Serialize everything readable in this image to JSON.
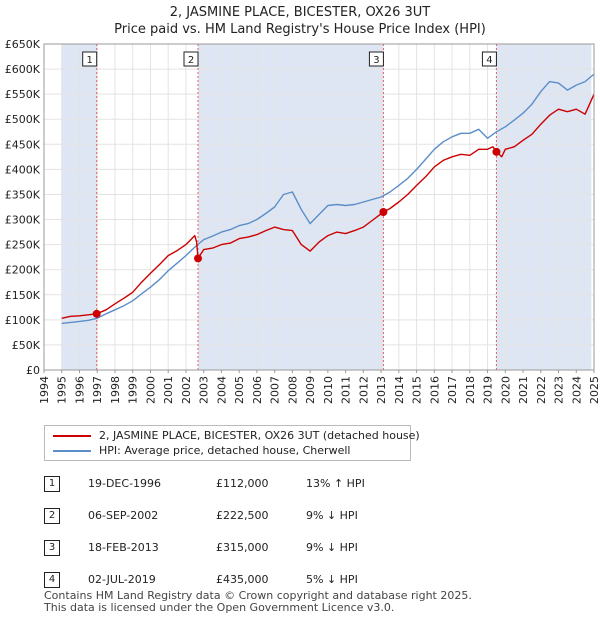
{
  "title": "2, JASMINE PLACE, BICESTER, OX26 3UT",
  "subtitle": "Price paid vs. HM Land Registry's House Price Index (HPI)",
  "colors": {
    "property": "#cc0000",
    "hpi": "#5b8ec9",
    "shade": "#dfe6f3",
    "marker_line": "#e06060"
  },
  "chart_data": {
    "type": "line",
    "xlim": [
      1994,
      2025
    ],
    "ylim": [
      0,
      650000
    ],
    "yticks": [
      0,
      50000,
      100000,
      150000,
      200000,
      250000,
      300000,
      350000,
      400000,
      450000,
      500000,
      550000,
      600000,
      650000
    ],
    "ytick_labels": [
      "£0",
      "£50K",
      "£100K",
      "£150K",
      "£200K",
      "£250K",
      "£300K",
      "£350K",
      "£400K",
      "£450K",
      "£500K",
      "£550K",
      "£600K",
      "£650K"
    ],
    "xticks": [
      1994,
      1995,
      1996,
      1997,
      1998,
      1999,
      2000,
      2001,
      2002,
      2003,
      2004,
      2005,
      2006,
      2007,
      2008,
      2009,
      2010,
      2011,
      2012,
      2013,
      2014,
      2015,
      2016,
      2017,
      2018,
      2019,
      2020,
      2021,
      2022,
      2023,
      2024,
      2025
    ],
    "shaded_ranges": [
      [
        1995.0,
        1996.97
      ],
      [
        2002.68,
        2013.13
      ],
      [
        2019.5,
        2024.85
      ]
    ],
    "series": [
      {
        "name": "2, JASMINE PLACE, BICESTER, OX26 3UT (detached house)",
        "x": [
          1995.0,
          1995.5,
          1996.0,
          1996.5,
          1996.97,
          1997.5,
          1998.0,
          1998.5,
          1999.0,
          1999.5,
          2000.0,
          2000.5,
          2001.0,
          2001.5,
          2002.0,
          2002.5,
          2002.6,
          2002.68,
          2003.0,
          2003.5,
          2004.0,
          2004.5,
          2005.0,
          2005.5,
          2006.0,
          2006.5,
          2007.0,
          2007.5,
          2008.0,
          2008.5,
          2009.0,
          2009.5,
          2010.0,
          2010.5,
          2011.0,
          2011.5,
          2012.0,
          2012.5,
          2013.13,
          2013.5,
          2014.0,
          2014.5,
          2015.0,
          2015.5,
          2016.0,
          2016.5,
          2017.0,
          2017.5,
          2018.0,
          2018.5,
          2019.0,
          2019.3,
          2019.5,
          2019.8,
          2020.0,
          2020.5,
          2021.0,
          2021.5,
          2022.0,
          2022.5,
          2023.0,
          2023.5,
          2024.0,
          2024.5,
          2025.0
        ],
        "values": [
          103000,
          107000,
          108000,
          110000,
          112000,
          120000,
          132000,
          143000,
          155000,
          175000,
          193000,
          210000,
          228000,
          238000,
          250000,
          268000,
          255000,
          222500,
          240000,
          243000,
          250000,
          253000,
          262000,
          265000,
          270000,
          278000,
          285000,
          280000,
          278000,
          250000,
          237000,
          255000,
          268000,
          275000,
          272000,
          278000,
          285000,
          298000,
          315000,
          322000,
          335000,
          350000,
          368000,
          385000,
          405000,
          418000,
          425000,
          430000,
          428000,
          440000,
          440000,
          445000,
          435000,
          425000,
          440000,
          445000,
          458000,
          470000,
          490000,
          508000,
          520000,
          515000,
          520000,
          510000,
          550000
        ]
      },
      {
        "name": "HPI: Average price, detached house, Cherwell",
        "x": [
          1995.0,
          1995.5,
          1996.0,
          1996.5,
          1997.0,
          1997.5,
          1998.0,
          1998.5,
          1999.0,
          1999.5,
          2000.0,
          2000.5,
          2001.0,
          2001.5,
          2002.0,
          2002.5,
          2003.0,
          2003.5,
          2004.0,
          2004.5,
          2005.0,
          2005.5,
          2006.0,
          2006.5,
          2007.0,
          2007.5,
          2008.0,
          2008.5,
          2009.0,
          2009.5,
          2010.0,
          2010.5,
          2011.0,
          2011.5,
          2012.0,
          2012.5,
          2013.0,
          2013.5,
          2014.0,
          2014.5,
          2015.0,
          2015.5,
          2016.0,
          2016.5,
          2017.0,
          2017.5,
          2018.0,
          2018.5,
          2019.0,
          2019.5,
          2020.0,
          2020.5,
          2021.0,
          2021.5,
          2022.0,
          2022.5,
          2023.0,
          2023.5,
          2024.0,
          2024.5,
          2025.0
        ],
        "values": [
          93000,
          95000,
          97000,
          99000,
          103000,
          112000,
          120000,
          128000,
          138000,
          152000,
          165000,
          180000,
          198000,
          213000,
          228000,
          245000,
          260000,
          267000,
          275000,
          280000,
          288000,
          292000,
          300000,
          312000,
          325000,
          350000,
          355000,
          320000,
          292000,
          310000,
          328000,
          330000,
          328000,
          330000,
          335000,
          340000,
          345000,
          355000,
          368000,
          382000,
          400000,
          420000,
          440000,
          455000,
          465000,
          472000,
          472000,
          480000,
          462000,
          475000,
          485000,
          498000,
          512000,
          530000,
          555000,
          575000,
          572000,
          558000,
          568000,
          575000,
          590000
        ]
      }
    ],
    "sales": [
      {
        "label": "1",
        "x": 1996.97,
        "value": 112000
      },
      {
        "label": "2",
        "x": 2002.68,
        "value": 222500
      },
      {
        "label": "3",
        "x": 2013.13,
        "value": 315000
      },
      {
        "label": "4",
        "x": 2019.5,
        "value": 435000
      }
    ]
  },
  "legend": {
    "property_label": "2, JASMINE PLACE, BICESTER, OX26 3UT (detached house)",
    "hpi_label": "HPI: Average price, detached house, Cherwell"
  },
  "sales_table": [
    {
      "num": "1",
      "date": "19-DEC-1996",
      "price": "£112,000",
      "hpi": "13% ↑ HPI"
    },
    {
      "num": "2",
      "date": "06-SEP-2002",
      "price": "£222,500",
      "hpi": "9% ↓ HPI"
    },
    {
      "num": "3",
      "date": "18-FEB-2013",
      "price": "£315,000",
      "hpi": "9% ↓ HPI"
    },
    {
      "num": "4",
      "date": "02-JUL-2019",
      "price": "£435,000",
      "hpi": "5% ↓ HPI"
    }
  ],
  "footer": {
    "line1": "Contains HM Land Registry data © Crown copyright and database right 2025.",
    "line2": "This data is licensed under the Open Government Licence v3.0."
  }
}
